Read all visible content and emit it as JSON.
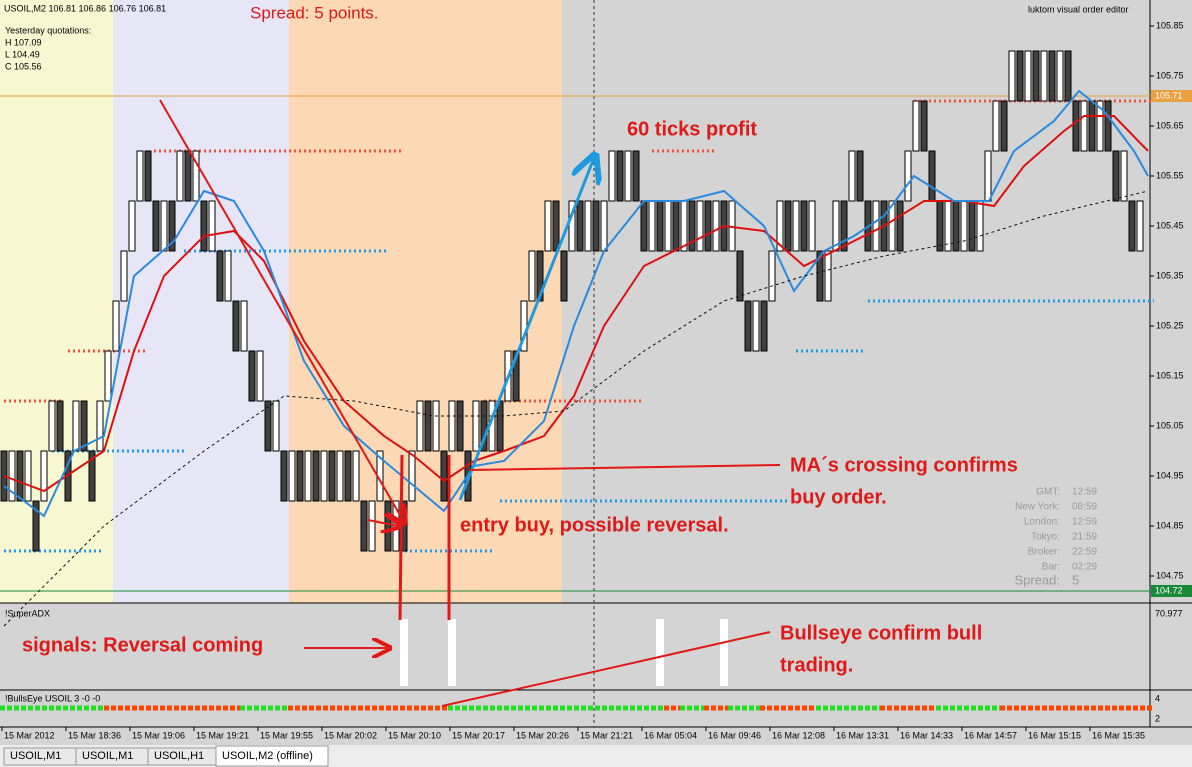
{
  "window": {
    "symbol_line": "USOIL,M2  106.81 106.86 106.76 106.81",
    "yesterday": "Yesterday quotations:",
    "high": "H 107.09",
    "low": "L 104.49",
    "close": "C 105.56",
    "editor": "luktom visual order editor",
    "spread_top": "Spread: 5 points.",
    "info": [
      [
        "GMT:",
        "12:59"
      ],
      [
        "New York:",
        "08:59"
      ],
      [
        "London:",
        "12:59"
      ],
      [
        "Tokyo:",
        "21:59"
      ],
      [
        "Broker:",
        "22:59"
      ],
      [
        "Bar:",
        "02:29"
      ]
    ],
    "info_spread": [
      "Spread:",
      "5"
    ],
    "superadx_label": "!SuperADX",
    "bullseye_label": "!BullsEye USOIL  3 -0 -0",
    "bullseye_scale": [
      "4",
      "2"
    ],
    "tabs": [
      "USOIL,M1",
      "USOIL,M1",
      "USOIL,H1",
      "USOIL,M2 (offline)"
    ]
  },
  "annotations": {
    "profit": "60 ticks profit",
    "ma_cross_1": "MA´s crossing confirms",
    "ma_cross_2": "buy order.",
    "entry": "entry buy, possible reversal.",
    "signals": "signals: Reversal coming",
    "bulls_1": "Bullseye confirm bull",
    "bulls_2": "trading."
  },
  "chart_data": {
    "type": "renko",
    "ylim": [
      104.7,
      105.9
    ],
    "yticks": [
      104.75,
      104.85,
      104.95,
      105.05,
      105.15,
      105.25,
      105.35,
      105.45,
      105.55,
      105.65,
      105.75,
      105.85
    ],
    "brick_size": 0.1,
    "up_color": "#ffffff",
    "down_color": "#404040",
    "bricks": [
      104.9,
      104.9,
      104.9,
      104.9,
      104.8,
      104.9,
      105.0,
      105.0,
      104.9,
      105.0,
      105.0,
      104.9,
      105.0,
      105.1,
      105.2,
      105.3,
      105.4,
      105.5,
      105.5,
      105.4,
      105.4,
      105.4,
      105.5,
      105.5,
      105.5,
      105.4,
      105.4,
      105.3,
      105.3,
      105.2,
      105.2,
      105.1,
      105.1,
      105.0,
      105.0,
      104.9,
      104.9,
      104.9,
      104.9,
      104.9,
      104.9,
      104.9,
      104.9,
      104.9,
      104.9,
      104.8,
      104.8,
      104.9,
      104.8,
      104.8,
      104.8,
      104.9,
      105.0,
      105.0,
      105.0,
      104.9,
      105.0,
      105.0,
      104.9,
      105.0,
      105.0,
      105.0,
      105.0,
      105.1,
      105.1,
      105.2,
      105.3,
      105.3,
      105.4,
      105.4,
      105.3,
      105.4,
      105.4,
      105.4,
      105.4,
      105.4,
      105.5,
      105.5,
      105.5,
      105.5,
      105.4,
      105.4,
      105.4,
      105.4,
      105.4,
      105.4,
      105.4,
      105.4,
      105.4,
      105.4,
      105.4,
      105.4,
      105.3,
      105.2,
      105.2,
      105.2,
      105.3,
      105.4,
      105.4,
      105.4,
      105.4,
      105.4,
      105.3,
      105.3,
      105.4,
      105.4,
      105.5,
      105.5,
      105.4,
      105.4,
      105.4,
      105.4,
      105.4,
      105.5,
      105.6,
      105.6,
      105.5,
      105.4,
      105.4,
      105.4,
      105.4,
      105.4,
      105.4,
      105.5,
      105.6,
      105.6,
      105.7,
      105.7,
      105.7,
      105.7,
      105.7,
      105.7,
      105.7,
      105.7,
      105.6,
      105.6,
      105.6,
      105.6,
      105.6,
      105.5,
      105.5,
      105.4,
      105.4
    ],
    "series": [
      {
        "color": "#dd1010",
        "dash": false,
        "x": [
          0,
          5,
          12.5,
          16.25,
          20,
          25,
          28.75,
          32.5,
          37.5,
          42.5,
          47.5,
          51.25,
          55,
          58.75,
          62.5,
          67.5,
          71.25,
          75,
          80,
          85,
          90,
          95,
          100,
          105,
          110,
          115,
          120,
          123.75,
          127.5,
          132.5,
          135,
          138.75,
          143
        ],
        "values": [
          104.95,
          104.92,
          105.0,
          105.2,
          105.35,
          105.43,
          105.44,
          105.38,
          105.22,
          105.1,
          105.03,
          104.99,
          104.94,
          104.98,
          105.0,
          105.03,
          105.11,
          105.25,
          105.37,
          105.41,
          105.45,
          105.44,
          105.37,
          105.41,
          105.45,
          105.5,
          105.5,
          105.49,
          105.57,
          105.64,
          105.67,
          105.67,
          105.6
        ]
      },
      {
        "color": "#2a8ae0",
        "dash": false,
        "x": [
          0,
          5,
          8.75,
          12.5,
          16.25,
          21.25,
          25,
          28.75,
          32.5,
          37.5,
          42.5,
          47.5,
          51.25,
          55,
          58.75,
          62.5,
          67.5,
          71.25,
          75,
          80,
          85,
          90,
          95,
          98.75,
          102.5,
          106.25,
          110,
          113.75,
          118.75,
          123.125,
          126.25,
          131.25,
          134.375,
          137.5,
          141.25,
          143
        ],
        "values": [
          104.93,
          104.87,
          105.0,
          105.03,
          105.35,
          105.42,
          105.52,
          105.5,
          105.4,
          105.18,
          105.05,
          104.98,
          104.93,
          104.88,
          104.97,
          104.98,
          105.06,
          105.25,
          105.4,
          105.5,
          105.5,
          105.52,
          105.45,
          105.32,
          105.4,
          105.43,
          105.47,
          105.55,
          105.5,
          105.5,
          105.6,
          105.66,
          105.72,
          105.68,
          105.6,
          105.55
        ]
      },
      {
        "color": "#111111",
        "dash": true,
        "x": [
          0,
          12.5,
          25,
          35,
          43.75,
          53.75,
          62.5,
          70,
          80,
          90,
          100,
          110,
          120,
          130,
          143
        ],
        "values": [
          104.65,
          104.85,
          105.0,
          105.11,
          105.1,
          105.07,
          105.07,
          105.08,
          105.2,
          105.3,
          105.35,
          105.39,
          105.42,
          105.47,
          105.52
        ]
      }
    ],
    "levels": [
      {
        "price": 105.1,
        "from": 0,
        "to": 7.5,
        "color": "#f0503c"
      },
      {
        "price": 105.2,
        "from": 8,
        "to": 18,
        "color": "#f0503c"
      },
      {
        "price": 105.6,
        "from": 18.75,
        "to": 50,
        "color": "#f0503c"
      },
      {
        "price": 105.1,
        "from": 60,
        "to": 80,
        "color": "#f0503c"
      },
      {
        "price": 105.6,
        "from": 81,
        "to": 89,
        "color": "#f0503c"
      },
      {
        "price": 105.7,
        "from": 113.75,
        "to": 143.75,
        "color": "#f0503c"
      },
      {
        "price": 105.0,
        "from": 6,
        "to": 22.5,
        "color": "#1e9bf0"
      },
      {
        "price": 104.8,
        "from": 0,
        "to": 12.5,
        "color": "#1e9bf0"
      },
      {
        "price": 105.4,
        "from": 22.5,
        "to": 48,
        "color": "#1e9bf0"
      },
      {
        "price": 104.8,
        "from": 49.5,
        "to": 61,
        "color": "#1e9bf0"
      },
      {
        "price": 104.9,
        "from": 62,
        "to": 98,
        "color": "#1e9bf0"
      },
      {
        "price": 105.2,
        "from": 99,
        "to": 107.5,
        "color": "#1e9bf0"
      },
      {
        "price": 105.3,
        "from": 108,
        "to": 143.75,
        "color": "#1e9bf0"
      }
    ],
    "price_lines": [
      {
        "value": 105.71,
        "color": "#e8a040"
      },
      {
        "value": 104.72,
        "color": "#1a8a3a"
      }
    ],
    "time_labels": [
      "15 Mar 2012",
      "15 Mar 18:36",
      "15 Mar 19:06",
      "15 Mar 19:21",
      "15 Mar 19:55",
      "15 Mar 20:02",
      "15 Mar 20:10",
      "15 Mar 20:17",
      "15 Mar 20:26",
      "15 Mar 21:21",
      "16 Mar 05:04",
      "16 Mar 09:46",
      "16 Mar 12:08",
      "16 Mar 13:31",
      "16 Mar 14:33",
      "16 Mar 14:57",
      "16 Mar 15:15",
      "16 Mar 15:35"
    ],
    "adx": {
      "ylim": [
        0,
        70.977
      ],
      "yticks": [
        70.977
      ],
      "bars": [
        {
          "x": 50,
          "value": 66
        },
        {
          "x": 56,
          "value": 66
        },
        {
          "x": 82,
          "value": 66
        },
        {
          "x": 90,
          "value": 66
        }
      ]
    },
    "bullseye": [
      {
        "from": 0,
        "to": 13,
        "color": "#22dd22"
      },
      {
        "from": 13,
        "to": 30,
        "color": "#ff4400"
      },
      {
        "from": 30,
        "to": 36,
        "color": "#22dd22"
      },
      {
        "from": 36,
        "to": 56,
        "color": "#ff4400"
      },
      {
        "from": 56,
        "to": 83,
        "color": "#22dd22"
      },
      {
        "from": 83,
        "to": 85,
        "color": "#ff4400"
      },
      {
        "from": 85,
        "to": 88,
        "color": "#22dd22"
      },
      {
        "from": 88,
        "to": 91,
        "color": "#ff4400"
      },
      {
        "from": 91,
        "to": 95,
        "color": "#22dd22"
      },
      {
        "from": 95,
        "to": 102,
        "color": "#ff4400"
      },
      {
        "from": 102,
        "to": 110,
        "color": "#22dd22"
      },
      {
        "from": 110,
        "to": 117,
        "color": "#ff4400"
      },
      {
        "from": 117,
        "to": 125,
        "color": "#22dd22"
      },
      {
        "from": 125,
        "to": 144,
        "color": "#ff4400"
      }
    ]
  }
}
